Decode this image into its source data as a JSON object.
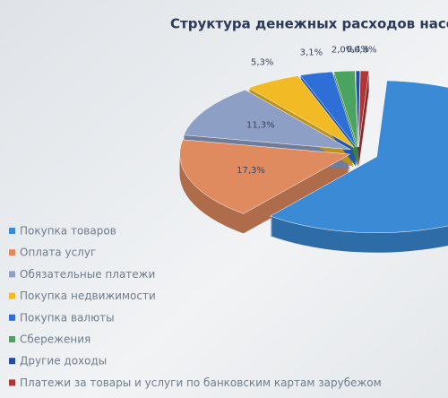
{
  "chart_data": {
    "type": "pie",
    "title": "Структура денежных расходов насел",
    "categories": [
      "Покупка товаров",
      "Оплата услуг",
      "Обязательные платежи",
      "Покупка недвижимости",
      "Покупка валюты",
      "Сбережения",
      "Другие доходы",
      "Платежи за товары и услуги по банковским картам зарубежом"
    ],
    "values": [
      59.8,
      17.3,
      11.3,
      5.3,
      3.1,
      2.0,
      0.4,
      0.8
    ],
    "value_labels": [
      null,
      "17,3%",
      "11,3%",
      "5,3%",
      "3,1%",
      "2,0%",
      "0,4%",
      "0,8%"
    ],
    "colors": [
      "#3b8ad6",
      "#e08a60",
      "#8e9fc6",
      "#f2bb25",
      "#2d6fd6",
      "#4aa35e",
      "#1f4f9e",
      "#b03535"
    ],
    "legend": "left"
  }
}
